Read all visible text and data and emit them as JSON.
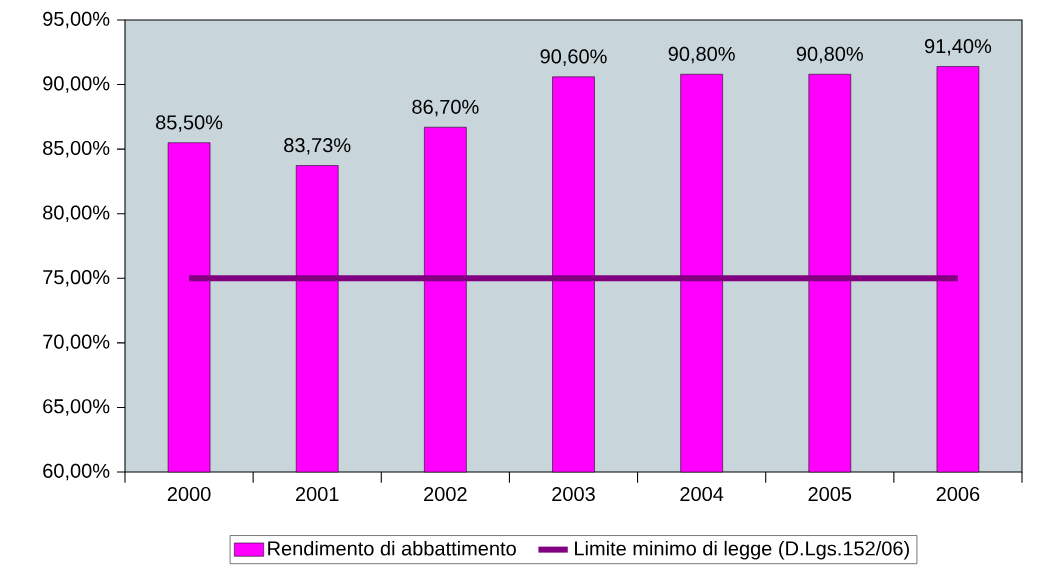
{
  "chart_data": {
    "type": "bar",
    "categories": [
      "2000",
      "2001",
      "2002",
      "2003",
      "2004",
      "2005",
      "2006"
    ],
    "series": [
      {
        "name": "Rendimento di abbattimento",
        "color": "#ff00ff",
        "values": [
          85.5,
          83.73,
          86.7,
          90.6,
          90.8,
          90.8,
          91.4
        ],
        "value_labels": [
          "85,50%",
          "83,73%",
          "86,70%",
          "90,60%",
          "90,80%",
          "90,80%",
          "91,40%"
        ]
      },
      {
        "name": "Limite minimo di legge (D.Lgs.152/06)",
        "type": "line",
        "color": "#800080",
        "values": [
          75,
          75,
          75,
          75,
          75,
          75,
          75
        ]
      }
    ],
    "ylim": [
      60,
      95
    ],
    "yticks": [
      {
        "value": 60,
        "label": "60,00%"
      },
      {
        "value": 65,
        "label": "65,00%"
      },
      {
        "value": 70,
        "label": "70,00%"
      },
      {
        "value": 75,
        "label": "75,00%"
      },
      {
        "value": 80,
        "label": "80,00%"
      },
      {
        "value": 85,
        "label": "85,00%"
      },
      {
        "value": 90,
        "label": "90,00%"
      },
      {
        "value": 95,
        "label": "95,00%"
      }
    ],
    "legend": "bottom",
    "grid": false
  }
}
